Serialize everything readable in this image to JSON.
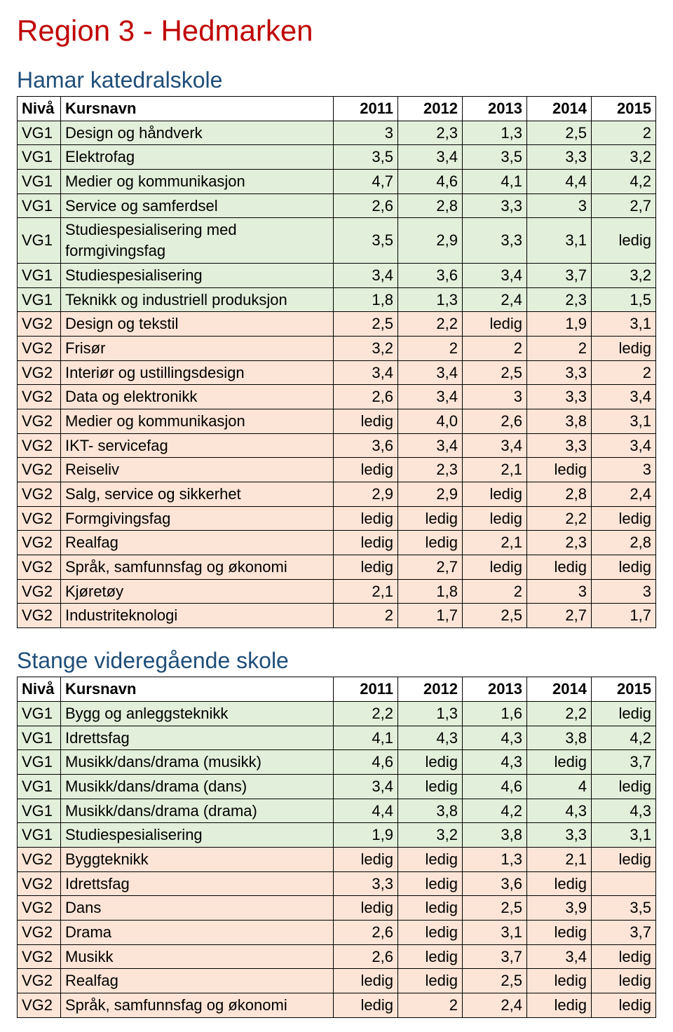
{
  "region_title": "Region 3 - Hedmarken",
  "region_title_color": "#c00000",
  "headers": {
    "niva": "Nivå",
    "kurs": "Kursnavn",
    "years": [
      "2011",
      "2012",
      "2013",
      "2014",
      "2015"
    ]
  },
  "row_colors": {
    "vg1": "#e2efda",
    "vg2": "#fce4d6"
  },
  "schools": [
    {
      "name": "Hamar katedralskole",
      "name_color": "#1f4e79",
      "rows": [
        {
          "niva": "VG1",
          "kurs": "Design og håndverk",
          "v": [
            "3",
            "2,3",
            "1,3",
            "2,5",
            "2"
          ]
        },
        {
          "niva": "VG1",
          "kurs": "Elektrofag",
          "v": [
            "3,5",
            "3,4",
            "3,5",
            "3,3",
            "3,2"
          ]
        },
        {
          "niva": "VG1",
          "kurs": "Medier og kommunikasjon",
          "v": [
            "4,7",
            "4,6",
            "4,1",
            "4,4",
            "4,2"
          ]
        },
        {
          "niva": "VG1",
          "kurs": "Service og samferdsel",
          "v": [
            "2,6",
            "2,8",
            "3,3",
            "3",
            "2,7"
          ]
        },
        {
          "niva": "VG1",
          "kurs": "Studiespesialisering med formgivingsfag",
          "v": [
            "3,5",
            "2,9",
            "3,3",
            "3,1",
            "ledig"
          ]
        },
        {
          "niva": "VG1",
          "kurs": "Studiespesialisering",
          "v": [
            "3,4",
            "3,6",
            "3,4",
            "3,7",
            "3,2"
          ]
        },
        {
          "niva": "VG1",
          "kurs": "Teknikk og industriell produksjon",
          "v": [
            "1,8",
            "1,3",
            "2,4",
            "2,3",
            "1,5"
          ]
        },
        {
          "niva": "VG2",
          "kurs": "Design og tekstil",
          "v": [
            "2,5",
            "2,2",
            "ledig",
            "1,9",
            "3,1"
          ]
        },
        {
          "niva": "VG2",
          "kurs": "Frisør",
          "v": [
            "3,2",
            "2",
            "2",
            "2",
            "ledig"
          ]
        },
        {
          "niva": "VG2",
          "kurs": "Interiør og ustillingsdesign",
          "v": [
            "3,4",
            "3,4",
            "2,5",
            "3,3",
            "2"
          ]
        },
        {
          "niva": "VG2",
          "kurs": "Data og elektronikk",
          "v": [
            "2,6",
            "3,4",
            "3",
            "3,3",
            "3,4"
          ]
        },
        {
          "niva": "VG2",
          "kurs": "Medier og kommunikasjon",
          "v": [
            "ledig",
            "4,0",
            "2,6",
            "3,8",
            "3,1"
          ]
        },
        {
          "niva": "VG2",
          "kurs": "IKT- servicefag",
          "v": [
            "3,6",
            "3,4",
            "3,4",
            "3,3",
            "3,4"
          ]
        },
        {
          "niva": "VG2",
          "kurs": "Reiseliv",
          "v": [
            "ledig",
            "2,3",
            "2,1",
            "ledig",
            "3"
          ]
        },
        {
          "niva": "VG2",
          "kurs": "Salg, service og sikkerhet",
          "v": [
            "2,9",
            "2,9",
            "ledig",
            "2,8",
            "2,4"
          ]
        },
        {
          "niva": "VG2",
          "kurs": "Formgivingsfag",
          "v": [
            "ledig",
            "ledig",
            "ledig",
            "2,2",
            "ledig"
          ]
        },
        {
          "niva": "VG2",
          "kurs": "Realfag",
          "v": [
            "ledig",
            "ledig",
            "2,1",
            "2,3",
            "2,8"
          ]
        },
        {
          "niva": "VG2",
          "kurs": "Språk, samfunnsfag og økonomi",
          "v": [
            "ledig",
            "2,7",
            "ledig",
            "ledig",
            "ledig"
          ]
        },
        {
          "niva": "VG2",
          "kurs": "Kjøretøy",
          "v": [
            "2,1",
            "1,8",
            "2",
            "3",
            "3"
          ]
        },
        {
          "niva": "VG2",
          "kurs": "Industriteknologi",
          "v": [
            "2",
            "1,7",
            "2,5",
            "2,7",
            "1,7"
          ]
        }
      ]
    },
    {
      "name": "Stange videregående skole",
      "name_color": "#1f4e79",
      "rows": [
        {
          "niva": "VG1",
          "kurs": "Bygg og anleggsteknikk",
          "v": [
            "2,2",
            "1,3",
            "1,6",
            "2,2",
            "ledig"
          ]
        },
        {
          "niva": "VG1",
          "kurs": "Idrettsfag",
          "v": [
            "4,1",
            "4,3",
            "4,3",
            "3,8",
            "4,2"
          ]
        },
        {
          "niva": "VG1",
          "kurs": "Musikk/dans/drama (musikk)",
          "v": [
            "4,6",
            "ledig",
            "4,3",
            "ledig",
            "3,7"
          ]
        },
        {
          "niva": "VG1",
          "kurs": "Musikk/dans/drama (dans)",
          "v": [
            "3,4",
            "ledig",
            "4,6",
            "4",
            "ledig"
          ]
        },
        {
          "niva": "VG1",
          "kurs": "Musikk/dans/drama (drama)",
          "v": [
            "4,4",
            "3,8",
            "4,2",
            "4,3",
            "4,3"
          ]
        },
        {
          "niva": "VG1",
          "kurs": "Studiespesialisering",
          "v": [
            "1,9",
            "3,2",
            "3,8",
            "3,3",
            "3,1"
          ]
        },
        {
          "niva": "VG2",
          "kurs": "Byggteknikk",
          "v": [
            "ledig",
            "ledig",
            "1,3",
            "2,1",
            "ledig"
          ]
        },
        {
          "niva": "VG2",
          "kurs": "Idrettsfag",
          "v": [
            "3,3",
            "ledig",
            "3,6",
            "ledig",
            ""
          ]
        },
        {
          "niva": "VG2",
          "kurs": "Dans",
          "v": [
            "ledig",
            "ledig",
            "2,5",
            "3,9",
            "3,5"
          ]
        },
        {
          "niva": "VG2",
          "kurs": "Drama",
          "v": [
            "2,6",
            "ledig",
            "3,1",
            "ledig",
            "3,7"
          ]
        },
        {
          "niva": "VG2",
          "kurs": "Musikk",
          "v": [
            "2,6",
            "ledig",
            "3,7",
            "3,4",
            "ledig"
          ]
        },
        {
          "niva": "VG2",
          "kurs": "Realfag",
          "v": [
            "ledig",
            "ledig",
            "2,5",
            "ledig",
            "ledig"
          ]
        },
        {
          "niva": "VG2",
          "kurs": "Språk, samfunnsfag og økonomi",
          "v": [
            "ledig",
            "2",
            "2,4",
            "ledig",
            "ledig"
          ]
        }
      ]
    }
  ]
}
